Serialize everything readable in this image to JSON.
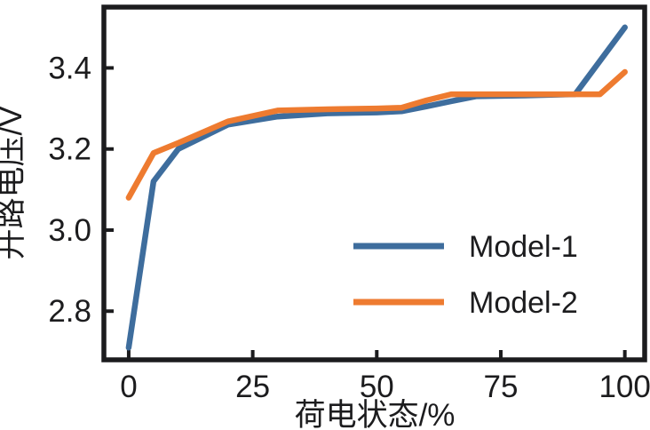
{
  "figure": {
    "background": "#ffffff",
    "text_color": "#1c1c1e"
  },
  "chart_data": {
    "type": "line",
    "title": "",
    "xlabel": "荷电状态/%",
    "ylabel": "开路电压/V",
    "xlim": [
      -5,
      104
    ],
    "ylim": [
      2.68,
      3.55
    ],
    "xticks": [
      0,
      25,
      50,
      75,
      100
    ],
    "xtick_labels": [
      "0",
      "25",
      "50",
      "75",
      "100"
    ],
    "yticks": [
      2.8,
      3.0,
      3.2,
      3.4
    ],
    "ytick_labels": [
      "2.8",
      "3.0",
      "3.2",
      "3.4"
    ],
    "grid": false,
    "tick_direction": "in",
    "legend_position": "inside lower-right",
    "series": [
      {
        "name": "Model-1",
        "color": "#3e6d9d",
        "points": [
          [
            0,
            2.71
          ],
          [
            5,
            3.12
          ],
          [
            10,
            3.2
          ],
          [
            20,
            3.26
          ],
          [
            30,
            3.28
          ],
          [
            40,
            3.288
          ],
          [
            50,
            3.29
          ],
          [
            55,
            3.293
          ],
          [
            60,
            3.305
          ],
          [
            65,
            3.318
          ],
          [
            70,
            3.33
          ],
          [
            80,
            3.332
          ],
          [
            90,
            3.335
          ],
          [
            100,
            3.5
          ]
        ]
      },
      {
        "name": "Model-2",
        "color": "#ee7b30",
        "points": [
          [
            0,
            3.08
          ],
          [
            5,
            3.19
          ],
          [
            10,
            3.215
          ],
          [
            20,
            3.268
          ],
          [
            30,
            3.295
          ],
          [
            40,
            3.298
          ],
          [
            50,
            3.3
          ],
          [
            55,
            3.302
          ],
          [
            60,
            3.32
          ],
          [
            65,
            3.335
          ],
          [
            80,
            3.335
          ],
          [
            90,
            3.335
          ],
          [
            95,
            3.335
          ],
          [
            100,
            3.39
          ]
        ]
      }
    ]
  }
}
